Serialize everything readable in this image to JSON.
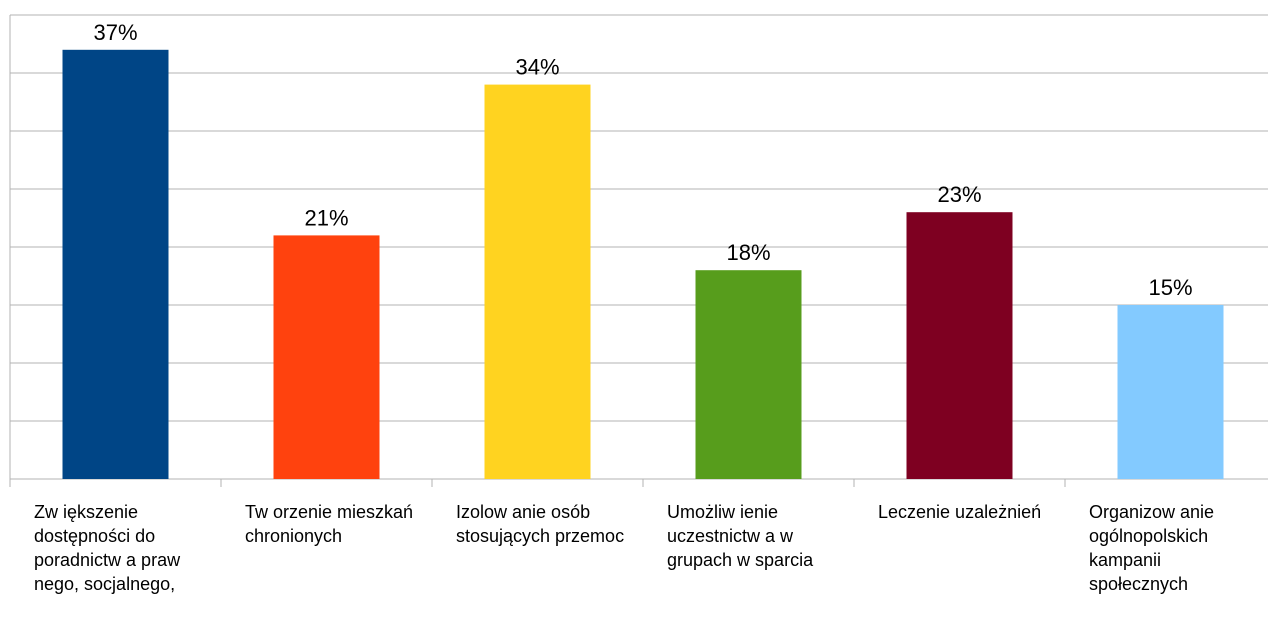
{
  "chart_data": {
    "type": "bar",
    "categories": [
      "Zw iększenie dostępności do poradnictw a praw nego, socjalnego,",
      "Tw orzenie mieszkań chronionych",
      "Izolow anie osób stosujących przemoc",
      "Umożliw ienie uczestnictw a w grupach w sparcia",
      "Leczenie uzależnień",
      "Organizow anie ogólnopolskich kampanii społecznych"
    ],
    "values": [
      37,
      21,
      34,
      18,
      23,
      15
    ],
    "value_labels": [
      "37%",
      "21%",
      "34%",
      "18%",
      "23%",
      "15%"
    ],
    "colors": [
      "#004586",
      "#ff420e",
      "#ffd320",
      "#579d1c",
      "#7e0021",
      "#83caff"
    ],
    "ylim": [
      0,
      40
    ],
    "grid": true,
    "title": "",
    "xlabel": "",
    "ylabel": ""
  }
}
